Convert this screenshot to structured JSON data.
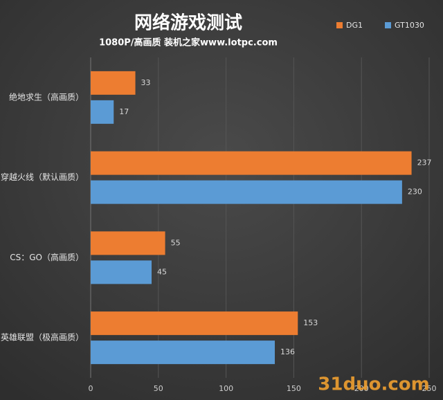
{
  "chart_data": {
    "type": "bar",
    "orientation": "horizontal",
    "title": "网络游戏测试",
    "subtitle": "1080P/高画质 装机之家www.lotpc.com",
    "categories": [
      "绝地求生（高画质）",
      "穿越火线（默认画质）",
      "CS：GO（高画质）",
      "英雄联盟（极高画质）"
    ],
    "series": [
      {
        "name": "DG1",
        "color": "#ed7d31",
        "values": [
          33,
          237,
          55,
          153
        ]
      },
      {
        "name": "GT1030",
        "color": "#5b9bd5",
        "values": [
          17,
          230,
          45,
          136
        ]
      }
    ],
    "xlim": [
      0,
      250
    ],
    "xticks": [
      0,
      50,
      100,
      150,
      200,
      250
    ],
    "grid": true,
    "legend": "top-right",
    "watermark": "31duo.com"
  }
}
